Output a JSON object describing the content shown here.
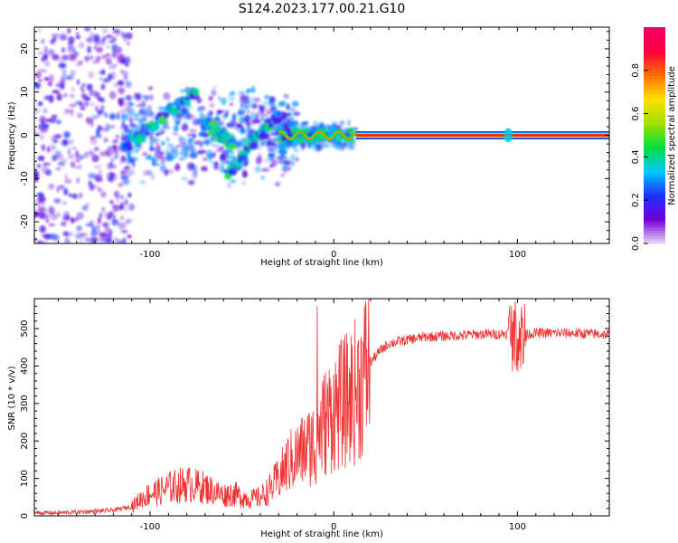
{
  "figure": {
    "title": "S124.2023.177.00.21.G10"
  },
  "chart_data": [
    {
      "type": "heatmap",
      "title": "S124.2023.177.00.21.G10",
      "xlabel": "Height of straight line (km)",
      "ylabel": "Frequency (Hz)",
      "xlim": [
        -163,
        150
      ],
      "ylim": [
        -25,
        25
      ],
      "xticks": [
        -100,
        0,
        100
      ],
      "yticks": [
        -20,
        -10,
        0,
        10,
        20
      ],
      "colorbar": {
        "label": "Normalized spectral amplitude",
        "range": [
          0,
          1
        ],
        "ticks": [
          0.0,
          0.2,
          0.4,
          0.6,
          0.8
        ],
        "colors": [
          "#e8dcf8",
          "#7000d8",
          "#2030ff",
          "#00c8ff",
          "#00e040",
          "#a0e000",
          "#ffe000",
          "#ff7000",
          "#ff0040",
          "#f0006a"
        ]
      },
      "carrier": {
        "frequency": 0,
        "x_from": 12,
        "x_to": 150,
        "amplitude": 0.95
      },
      "scatter_regions": [
        {
          "x_from": -163,
          "x_to": -110,
          "f_spread": 25,
          "level": 0.2
        },
        {
          "x_from": -115,
          "x_to": -20,
          "f_spread": 12,
          "level": 0.35
        },
        {
          "x_from": -30,
          "x_to": 12,
          "f_spread": 3,
          "level": 0.45
        }
      ],
      "arc_features": [
        {
          "x_from": -115,
          "x_to": -75,
          "f_from": -3,
          "f_to": 10
        },
        {
          "x_from": -70,
          "x_to": -55,
          "f_from": 3,
          "f_to": -2
        },
        {
          "x_from": -58,
          "x_to": -30,
          "f_from": -9,
          "f_to": 5
        },
        {
          "x_from": -30,
          "x_to": 10,
          "f_from": 0,
          "f_to": 0
        }
      ],
      "grid": false
    },
    {
      "type": "line",
      "xlabel": "Height of straight line (km)",
      "ylabel": "SNR (10 * v/v)",
      "xlim": [
        -163,
        150
      ],
      "ylim": [
        0,
        580
      ],
      "xticks": [
        -100,
        0,
        100
      ],
      "yticks": [
        0,
        100,
        200,
        300,
        400,
        500
      ],
      "color": "#ee3333",
      "grid": false,
      "series": [
        {
          "x": [
            -163,
            -150,
            -140,
            -130,
            -120,
            -110,
            -105,
            -100,
            -95,
            -90,
            -85,
            -80,
            -75,
            -70,
            -65,
            -60,
            -55,
            -50,
            -45,
            -40,
            -35,
            -30,
            -25,
            -20,
            -15,
            -10,
            -5,
            0,
            5,
            10,
            15,
            20,
            25,
            30,
            40,
            50,
            60,
            70,
            80,
            90,
            95,
            100,
            105,
            110,
            120,
            130,
            140,
            150
          ],
          "y": [
            8,
            8,
            10,
            12,
            15,
            25,
            45,
            60,
            65,
            75,
            80,
            85,
            80,
            75,
            65,
            55,
            60,
            50,
            45,
            50,
            70,
            100,
            140,
            160,
            180,
            200,
            250,
            280,
            300,
            320,
            360,
            410,
            440,
            460,
            470,
            478,
            480,
            482,
            485,
            485,
            488,
            480,
            485,
            488,
            488,
            488,
            486,
            484
          ]
        }
      ]
    }
  ]
}
